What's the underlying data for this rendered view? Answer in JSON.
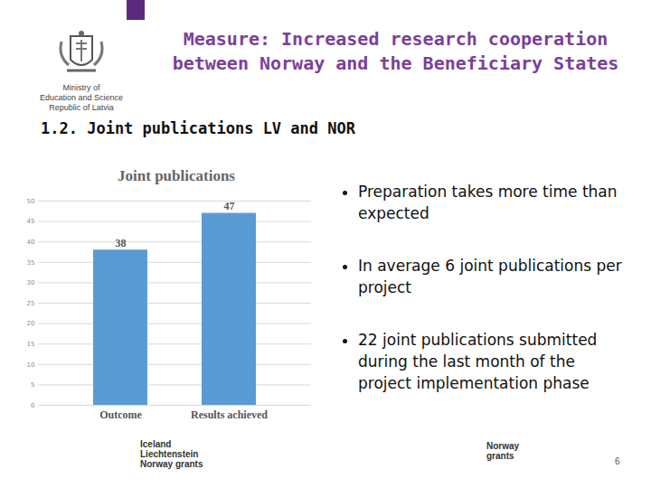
{
  "slide": {
    "header": [
      "Measure: Increased research cooperation",
      "between Norway and the Beneficiary States"
    ],
    "logo_text": [
      "Ministry of",
      "Education and Science",
      "Republic of Latvia"
    ],
    "subheading": "1.2. Joint publications LV and NOR",
    "bullets": [
      "Preparation takes more time than expected",
      "In average 6 joint publications per project",
      "22 joint publications submitted during the last month of the project implementation phase"
    ],
    "footer_logos": [
      [
        "Iceland",
        "Liechtenstein",
        "Norway grants"
      ],
      [
        "Norway",
        "grants"
      ]
    ],
    "page_number": "6"
  },
  "chart_data": {
    "type": "bar",
    "title": "Joint publications",
    "categories": [
      "Outcome",
      "Results achieved"
    ],
    "values": [
      38,
      47
    ],
    "color": "#5b9bd5",
    "ylim": [
      0,
      50
    ],
    "yticks": [
      0,
      5,
      10,
      15,
      20,
      25,
      30,
      35,
      40,
      45,
      50
    ],
    "grid": true,
    "data_labels": true
  }
}
